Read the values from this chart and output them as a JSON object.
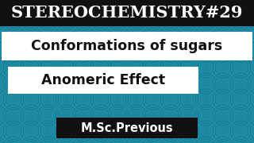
{
  "title": "STEREOCHEMISTRY#29",
  "line1": "Conformations of sugars",
  "line2": "Anomeric Effect",
  "footer": "M.Sc.Previous",
  "bg_color": "#2090a8",
  "title_bg": "#111111",
  "title_color": "#ffffff",
  "box1_bg": "#ffffff",
  "box1_color": "#111111",
  "box2_bg": "#ffffff",
  "box2_color": "#111111",
  "footer_bg": "#111111",
  "footer_color": "#ffffff",
  "pattern_color": "#1878a0",
  "pattern_color2": "#116888",
  "fig_width": 3.2,
  "fig_height": 1.8,
  "dpi": 100
}
